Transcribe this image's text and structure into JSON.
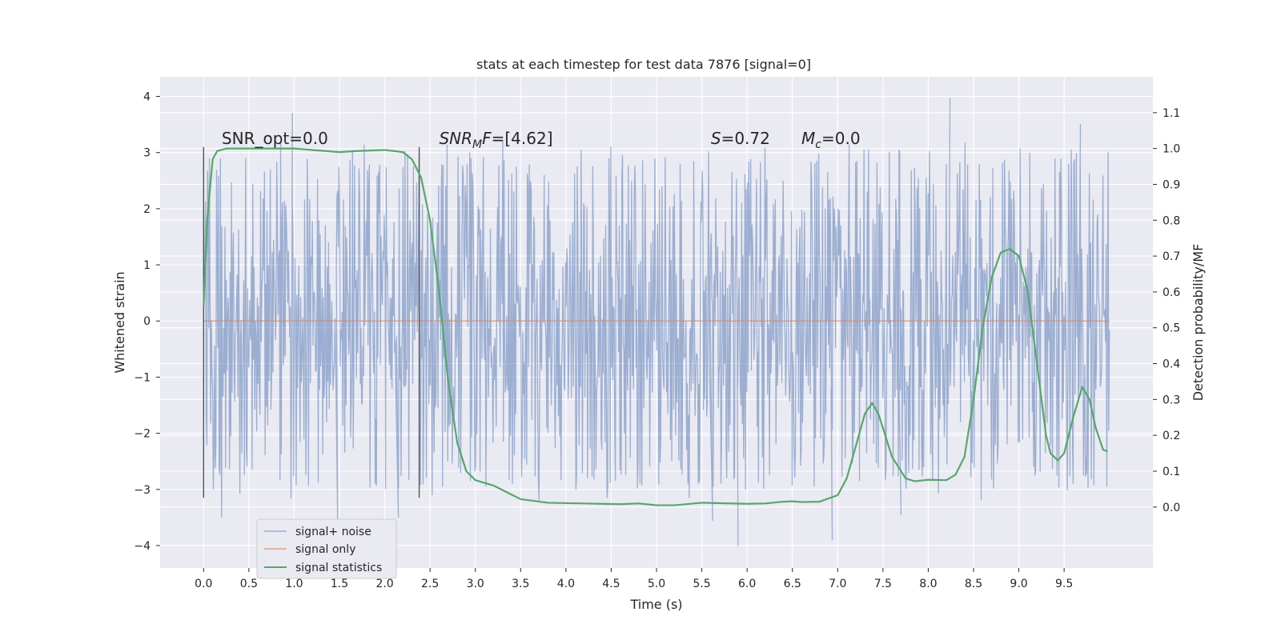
{
  "chart_data": {
    "type": "line",
    "title": "stats at each timestep for test data 7876 [signal=0]",
    "xlabel": "Time (s)",
    "ylabel": "Whitened strain",
    "y2label": "Detection probability/MF",
    "xlim": [
      -0.48,
      10.48
    ],
    "ylim": [
      -4.4,
      4.35
    ],
    "y2lim": [
      -0.17,
      1.2
    ],
    "xticks": [
      0.0,
      0.5,
      1.0,
      1.5,
      2.0,
      2.5,
      3.0,
      3.5,
      4.0,
      4.5,
      5.0,
      5.5,
      6.0,
      6.5,
      7.0,
      7.5,
      8.0,
      8.5,
      9.0,
      9.5
    ],
    "xticklabels": [
      "0.0",
      "0.5",
      "1.0",
      "1.5",
      "2.0",
      "2.5",
      "3.0",
      "3.5",
      "4.0",
      "4.5",
      "5.0",
      "5.5",
      "6.0",
      "6.5",
      "7.0",
      "7.5",
      "8.0",
      "8.5",
      "9.0",
      "9.5"
    ],
    "yticks": [
      4,
      3,
      2,
      1,
      0,
      -1,
      -2,
      -3,
      -4
    ],
    "yticklabels": [
      "4",
      "3",
      "2",
      "1",
      "0",
      "−1",
      "−2",
      "−3",
      "−4"
    ],
    "y2ticks": [
      1.1,
      1.0,
      0.9,
      0.8,
      0.7,
      0.6,
      0.5,
      0.4,
      0.3,
      0.2,
      0.1,
      0.0
    ],
    "y2ticklabels": [
      "1.1",
      "1.0",
      "0.9",
      "0.8",
      "0.7",
      "0.6",
      "0.5",
      "0.4",
      "0.3",
      "0.2",
      "0.1",
      "0.0"
    ],
    "grid": true,
    "legend_position": "lower-left",
    "series": [
      {
        "name": "signal+ noise",
        "color": "#4c72b0",
        "kind": "noise-trace",
        "x_range": [
          0.0,
          10.0
        ],
        "typical_band": [
          -1.3,
          1.3
        ],
        "outer_band": [
          -3.0,
          2.9
        ],
        "extremes": [
          {
            "x": 0.98,
            "y": 3.7
          },
          {
            "x": 8.24,
            "y": 3.97
          },
          {
            "x": 9.68,
            "y": 3.5
          },
          {
            "x": 5.9,
            "y": -4.0
          },
          {
            "x": 6.94,
            "y": -3.9
          },
          {
            "x": 0.2,
            "y": -3.5
          },
          {
            "x": 1.48,
            "y": -3.55
          },
          {
            "x": 2.15,
            "y": -3.5
          },
          {
            "x": 5.62,
            "y": -3.55
          },
          {
            "x": 7.7,
            "y": -3.45
          }
        ]
      },
      {
        "name": "signal only",
        "color": "#dd8452",
        "x": [
          0.0,
          10.0
        ],
        "y": [
          0.0,
          0.0
        ]
      },
      {
        "name": "signal statistics",
        "color": "#55a868",
        "axis": "right",
        "x": [
          0.0,
          0.04,
          0.1,
          0.15,
          0.25,
          0.5,
          1.0,
          1.5,
          1.7,
          2.0,
          2.2,
          2.3,
          2.4,
          2.5,
          2.6,
          2.7,
          2.8,
          2.9,
          3.0,
          3.2,
          3.5,
          3.8,
          4.2,
          4.6,
          4.8,
          5.0,
          5.2,
          5.5,
          6.0,
          6.2,
          6.4,
          6.5,
          6.6,
          6.8,
          7.0,
          7.1,
          7.2,
          7.3,
          7.38,
          7.45,
          7.6,
          7.75,
          7.85,
          8.0,
          8.2,
          8.3,
          8.4,
          8.5,
          8.6,
          8.7,
          8.8,
          8.9,
          9.0,
          9.1,
          9.2,
          9.3,
          9.35,
          9.43,
          9.5,
          9.6,
          9.7,
          9.78,
          9.85,
          9.93,
          9.98
        ],
        "y": [
          0.56,
          0.8,
          0.97,
          0.993,
          1.0,
          1.0,
          1.0,
          0.99,
          0.993,
          0.996,
          0.99,
          0.97,
          0.92,
          0.8,
          0.6,
          0.35,
          0.18,
          0.1,
          0.075,
          0.06,
          0.022,
          0.012,
          0.01,
          0.008,
          0.01,
          0.005,
          0.005,
          0.012,
          0.009,
          0.01,
          0.015,
          0.016,
          0.014,
          0.015,
          0.033,
          0.08,
          0.17,
          0.26,
          0.29,
          0.26,
          0.14,
          0.08,
          0.072,
          0.076,
          0.075,
          0.09,
          0.14,
          0.3,
          0.5,
          0.64,
          0.71,
          0.72,
          0.7,
          0.6,
          0.4,
          0.2,
          0.15,
          0.13,
          0.15,
          0.25,
          0.335,
          0.3,
          0.22,
          0.16,
          0.155
        ]
      }
    ],
    "vlines": [
      {
        "x": 0.0,
        "ymin": -3.15,
        "ymax": 3.1,
        "color": "#555555"
      },
      {
        "x": 2.38,
        "ymin": -3.15,
        "ymax": 3.1,
        "color": "#555555"
      }
    ],
    "annotations": [
      {
        "x": 0.2,
        "y": 3.15,
        "parts": [
          {
            "t": "SNR_opt=0.0",
            "i": false
          }
        ]
      },
      {
        "x": 2.6,
        "y": 3.15,
        "parts": [
          {
            "t": "SNR",
            "i": true
          },
          {
            "t": "M",
            "i": true,
            "sub": true
          },
          {
            "t": "F",
            "i": true
          },
          {
            "t": "=[4.62]",
            "i": false
          }
        ]
      },
      {
        "x": 5.6,
        "y": 3.15,
        "parts": [
          {
            "t": "S",
            "i": true
          },
          {
            "t": "=0.72",
            "i": false
          }
        ]
      },
      {
        "x": 6.6,
        "y": 3.15,
        "parts": [
          {
            "t": "M",
            "i": true
          },
          {
            "t": "c",
            "i": true,
            "sub": true
          },
          {
            "t": "=0.0",
            "i": false
          }
        ]
      }
    ]
  }
}
